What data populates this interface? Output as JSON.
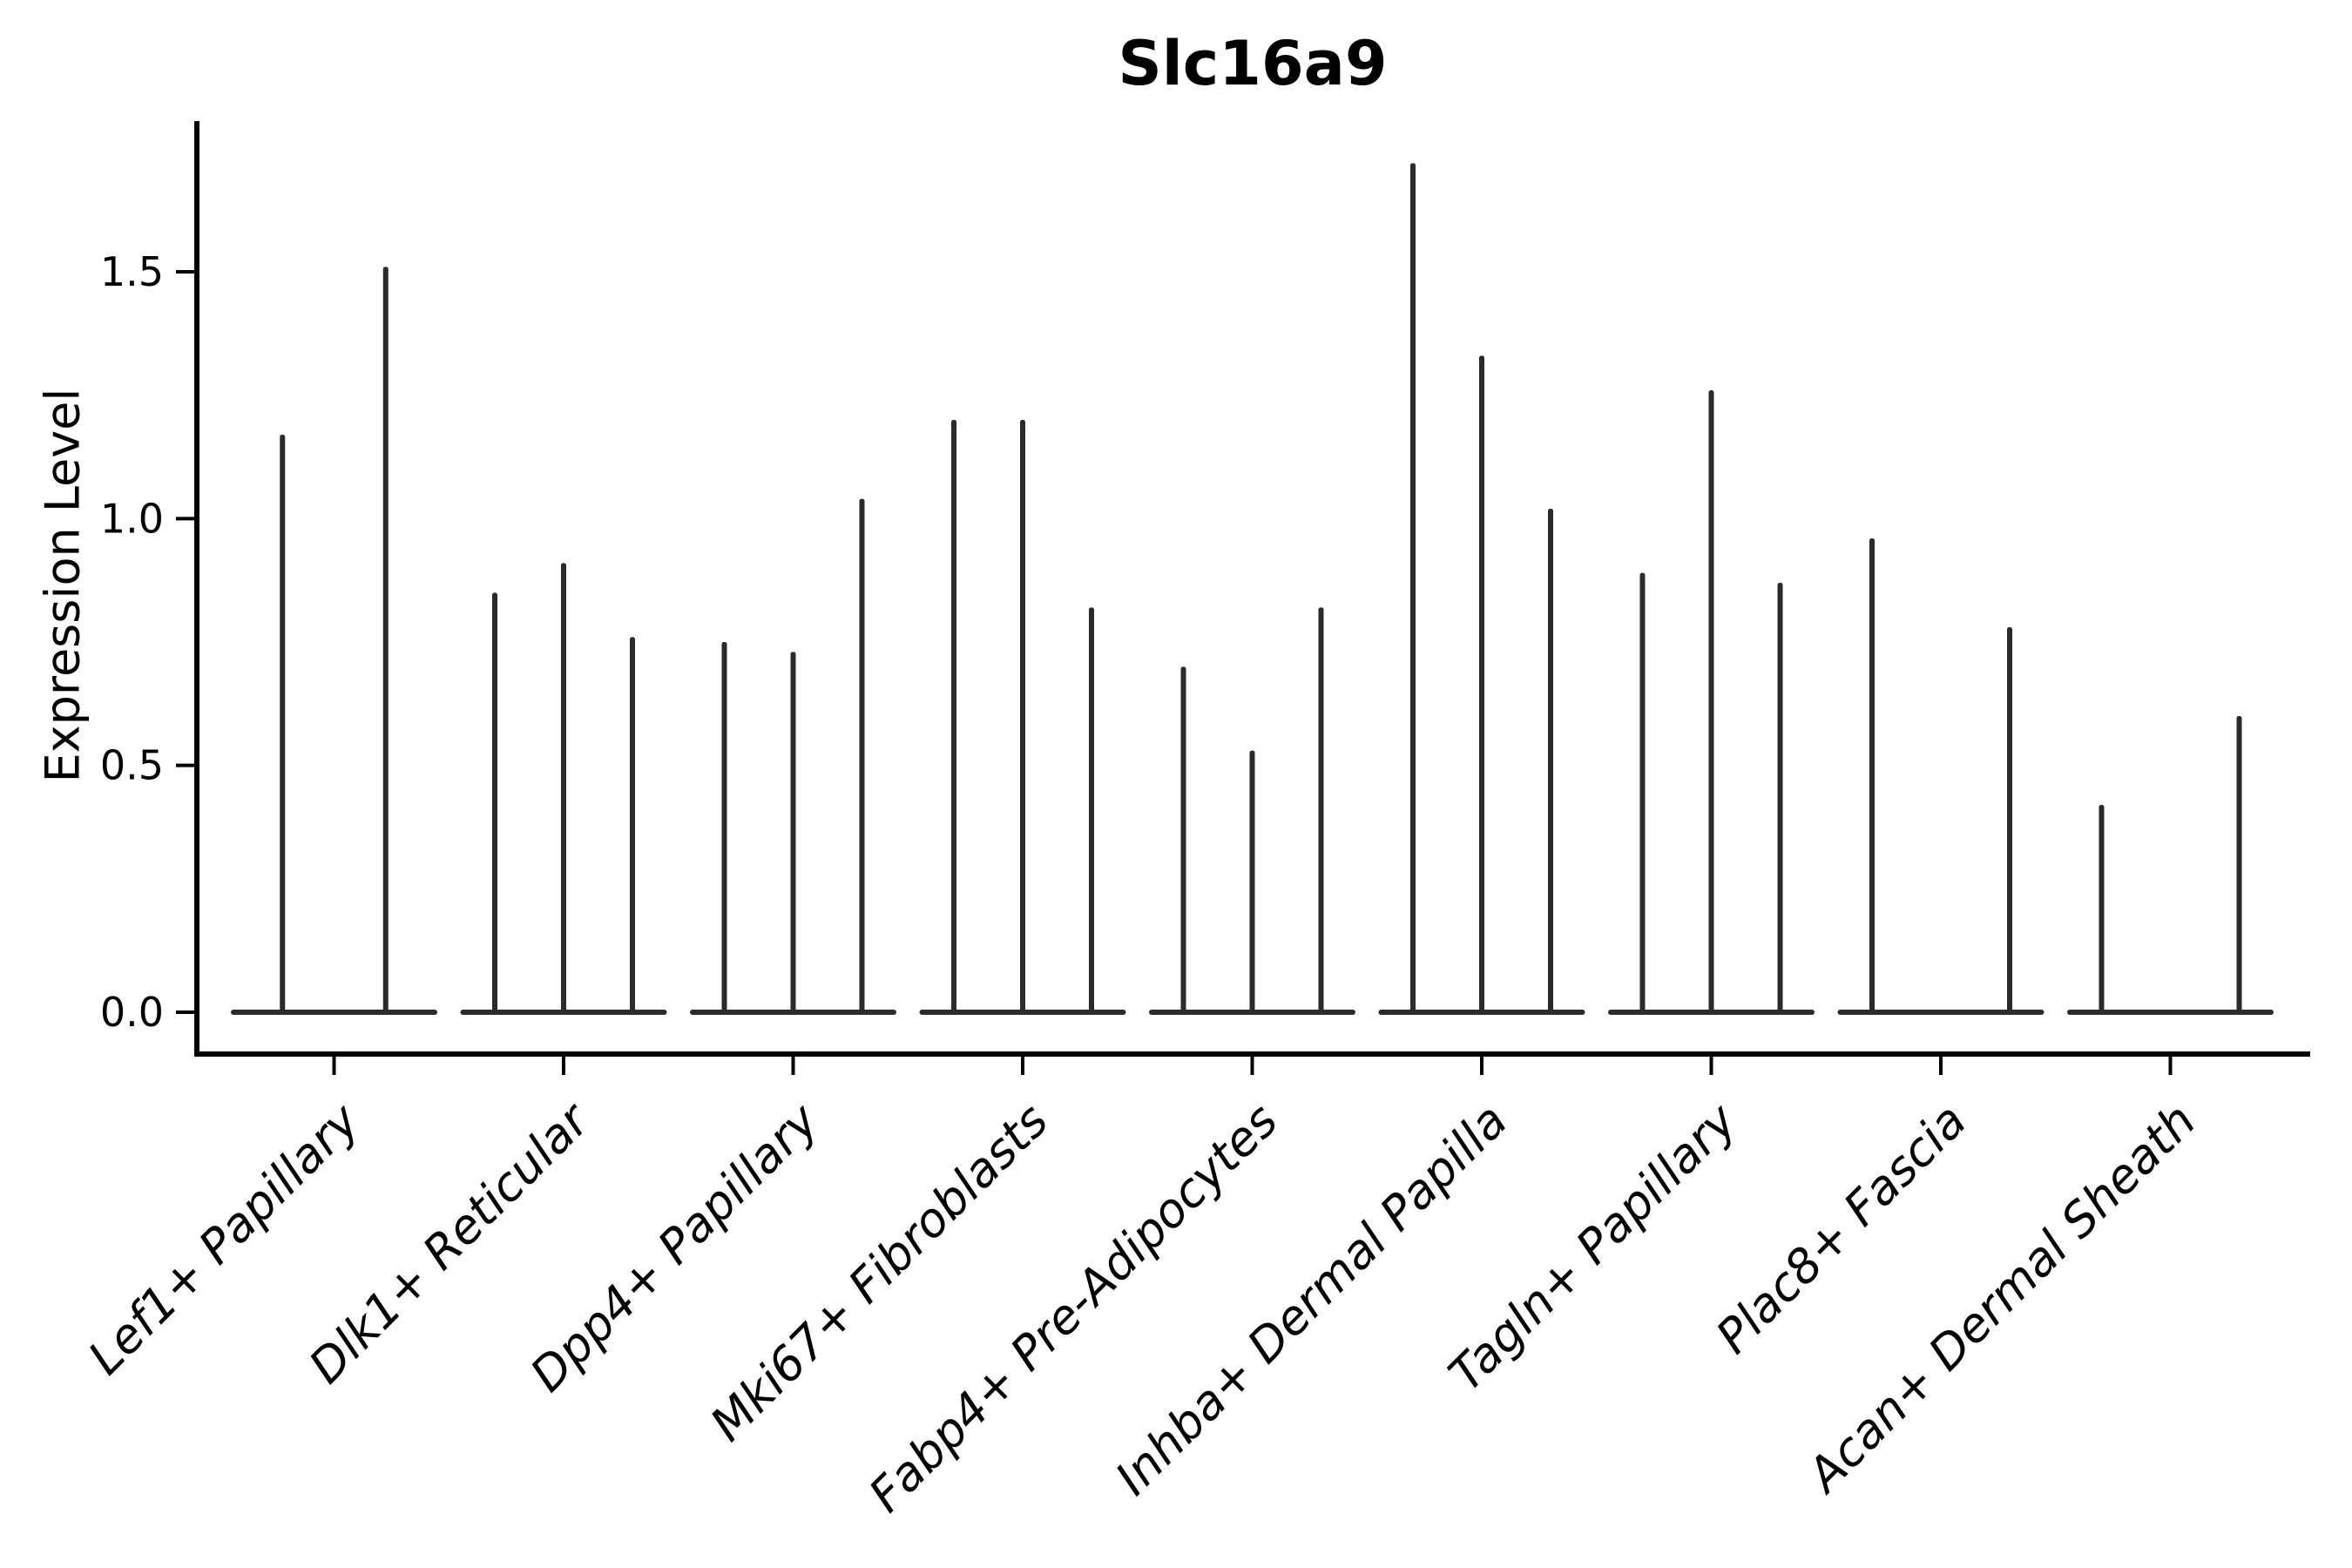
{
  "chart_data": {
    "type": "violin",
    "title": "Slc16a9",
    "xlabel": "",
    "ylabel": "Expression Level",
    "ytick_labels": [
      "0.0",
      "0.5",
      "1.0",
      "1.5"
    ],
    "ytick_values": [
      0.0,
      0.5,
      1.0,
      1.5
    ],
    "ylim": [
      0,
      1.8
    ],
    "legend": "none",
    "grid": false,
    "style_note": "Seurat-style violin plot; expression is near-zero for most cells so each violin collapses to a flat baseline at 0 with a thin vertical spike up to the maximum expression value",
    "categories": [
      "Lef1+ Papillary",
      "Dlk1+ Reticular",
      "Dpp4+ Papillary",
      "Mki67+ Fibroblasts",
      "Fabp4+ Pre-Adipocytes",
      "Inhba+ Dermal Papilla",
      "Tagln+ Papillary",
      "Plac8+ Fascia",
      "Acan+ Dermal Sheath"
    ],
    "groups": [
      {
        "category": "Lef1+ Papillary",
        "violin_maxima": [
          1.17,
          1.51
        ]
      },
      {
        "category": "Dlk1+ Reticular",
        "violin_maxima": [
          0.85,
          0.91,
          0.76
        ]
      },
      {
        "category": "Dpp4+ Papillary",
        "violin_maxima": [
          0.75,
          0.73,
          1.04
        ]
      },
      {
        "category": "Mki67+ Fibroblasts",
        "violin_maxima": [
          1.2,
          1.2,
          0.82
        ]
      },
      {
        "category": "Fabp4+ Pre-Adipocytes",
        "violin_maxima": [
          0.7,
          0.53,
          0.82
        ]
      },
      {
        "category": "Inhba+ Dermal Papilla",
        "violin_maxima": [
          1.72,
          1.33,
          1.02
        ]
      },
      {
        "category": "Tagln+ Papillary",
        "violin_maxima": [
          0.89,
          1.26,
          0.87
        ]
      },
      {
        "category": "Plac8+ Fascia",
        "violin_maxima": [
          0.96,
          0,
          0.78
        ]
      },
      {
        "category": "Acan+ Dermal Sheath",
        "violin_maxima": [
          0.42,
          0,
          0.6
        ]
      }
    ],
    "colors": {
      "violin_line": "#2b2b2b",
      "axis": "#000000",
      "text": "#000000",
      "background": "#ffffff"
    }
  }
}
